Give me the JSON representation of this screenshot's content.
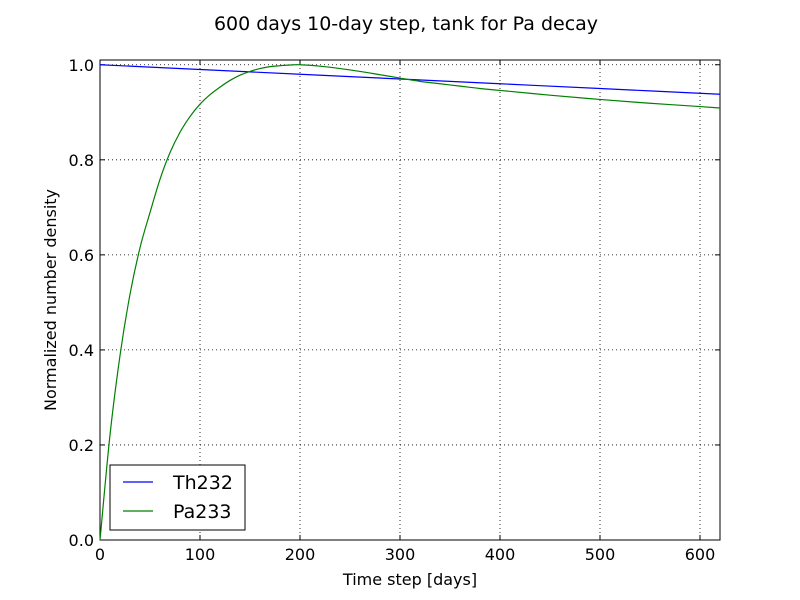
{
  "chart_data": {
    "type": "line",
    "title": "600 days 10-day step, tank for Pa decay",
    "xlabel": "Time step [days]",
    "ylabel": "Normalized number density",
    "xlim": [
      0,
      620
    ],
    "ylim": [
      0.0,
      1.01
    ],
    "xticks": [
      0,
      100,
      200,
      300,
      400,
      500,
      600
    ],
    "xtick_labels": [
      "0",
      "100",
      "200",
      "300",
      "400",
      "500",
      "600"
    ],
    "yticks": [
      0.0,
      0.2,
      0.4,
      0.6,
      0.8,
      1.0
    ],
    "ytick_labels": [
      "0.0",
      "0.2",
      "0.4",
      "0.6",
      "0.8",
      "1.0"
    ],
    "grid": true,
    "grid_style": "dotted",
    "legend_position": "lower-left",
    "series": [
      {
        "name": "Th232",
        "color": "#0000ff",
        "x": [
          0,
          100,
          200,
          300,
          400,
          500,
          620
        ],
        "y": [
          1.0,
          0.99,
          0.98,
          0.97,
          0.96,
          0.95,
          0.938
        ]
      },
      {
        "name": "Pa233",
        "color": "#008000",
        "x": [
          0,
          10,
          20,
          30,
          40,
          50,
          60,
          70,
          80,
          90,
          100,
          110,
          120,
          130,
          140,
          150,
          160,
          170,
          180,
          190,
          200,
          220,
          240,
          260,
          280,
          300,
          320,
          340,
          360,
          380,
          400,
          450,
          500,
          550,
          600,
          620
        ],
        "y": [
          0.0,
          0.221,
          0.388,
          0.517,
          0.615,
          0.689,
          0.759,
          0.815,
          0.858,
          0.891,
          0.917,
          0.937,
          0.953,
          0.967,
          0.978,
          0.986,
          0.992,
          0.996,
          0.998,
          0.9995,
          1.0,
          0.997,
          0.992,
          0.986,
          0.979,
          0.972,
          0.965,
          0.96,
          0.955,
          0.95,
          0.946,
          0.936,
          0.927,
          0.919,
          0.912,
          0.909
        ]
      }
    ]
  }
}
